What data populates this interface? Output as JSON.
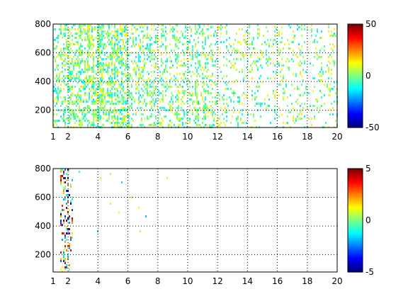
{
  "chart_data": [
    {
      "type": "heatmap",
      "title": "",
      "xlabel": "",
      "ylabel": "",
      "xlim": [
        1,
        20
      ],
      "ylim": [
        80,
        800
      ],
      "xticks": [
        "1",
        "2",
        "4",
        "6",
        "8",
        "10",
        "12",
        "14",
        "16",
        "18",
        "20"
      ],
      "yticks": [
        "200",
        "400",
        "600",
        "800"
      ],
      "grid": true,
      "colorbar": {
        "limits": [
          -50,
          50
        ],
        "ticks": [
          "50",
          "0",
          "-50"
        ],
        "colormap": "jet"
      },
      "description_of_values": "sparse low-magnitude values, mostly in [-15, 15], densest for x < 6"
    },
    {
      "type": "heatmap",
      "title": "",
      "xlabel": "",
      "ylabel": "",
      "xlim": [
        1,
        20
      ],
      "ylim": [
        80,
        800
      ],
      "xticks": [
        "1",
        "2",
        "4",
        "6",
        "8",
        "10",
        "12",
        "14",
        "16",
        "18",
        "20"
      ],
      "yticks": [
        "200",
        "400",
        "600",
        "800"
      ],
      "grid": true,
      "colorbar": {
        "limits": [
          -5,
          5
        ],
        "ticks": [
          "5",
          "0",
          "-5"
        ],
        "colormap": "jet"
      },
      "description_of_values": "very sparse, extreme values concentrated near x = 1.5 to 2.2"
    }
  ]
}
